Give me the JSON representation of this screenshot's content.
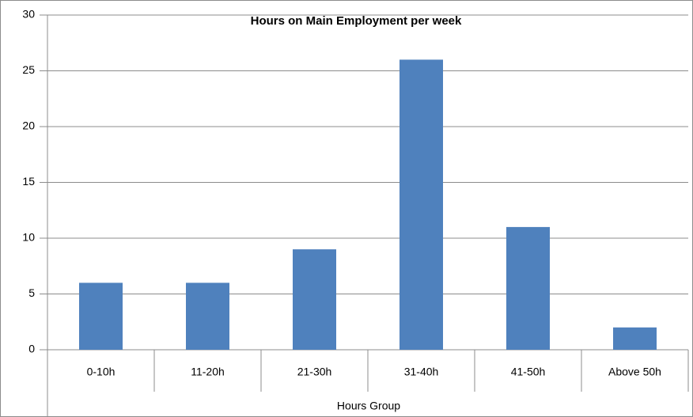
{
  "chart_data": {
    "type": "bar",
    "title": "Hours on Main Employment per week",
    "categories": [
      "0-10h",
      "11-20h",
      "21-30h",
      "31-40h",
      "41-50h",
      "Above 50h"
    ],
    "values": [
      6,
      6,
      9,
      26,
      11,
      2
    ],
    "color": "#4f81bd",
    "x_label": "Hours Group",
    "ylim": [
      0,
      30
    ],
    "yticks": [
      0,
      5,
      10,
      15,
      20,
      25,
      30
    ],
    "grid": true
  }
}
